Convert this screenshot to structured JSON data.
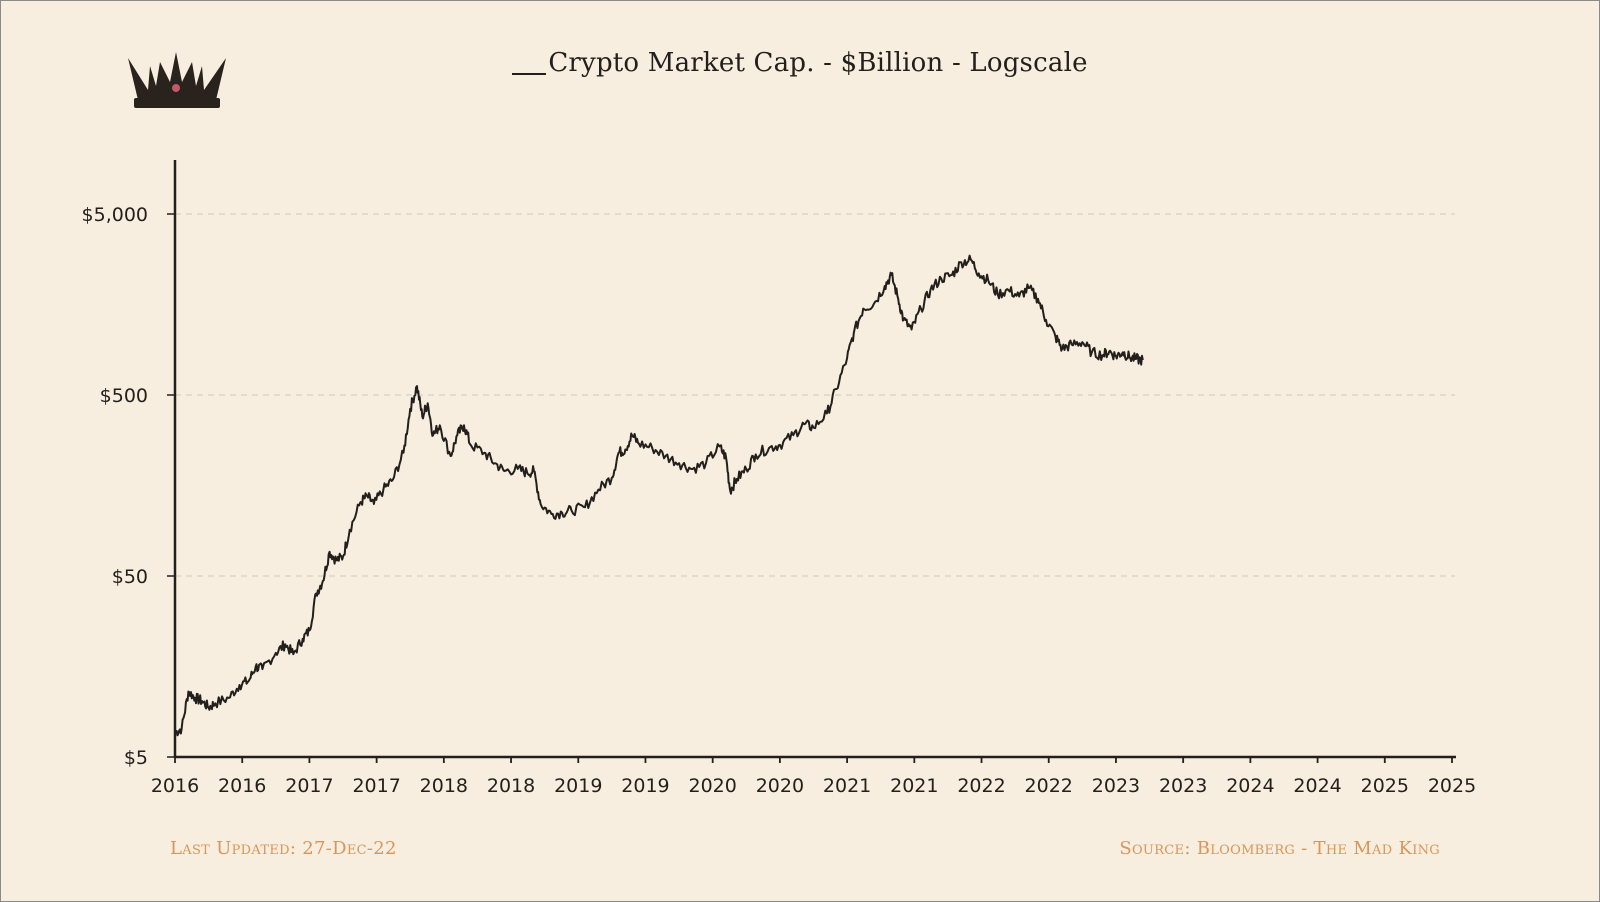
{
  "chart_data": {
    "type": "line",
    "title": "Crypto Market Cap. - $Billion - Logscale",
    "yscale": "log",
    "ylim": [
      5,
      10000
    ],
    "yticks": [
      {
        "value": 5,
        "label": "$5"
      },
      {
        "value": 50,
        "label": "$50"
      },
      {
        "value": 500,
        "label": "$500"
      },
      {
        "value": 5000,
        "label": "$5,000"
      }
    ],
    "xlim": [
      2016.0,
      2025.5
    ],
    "xticks": [
      {
        "value": 2016.0,
        "label": "2016"
      },
      {
        "value": 2016.5,
        "label": "2016"
      },
      {
        "value": 2017.0,
        "label": "2017"
      },
      {
        "value": 2017.5,
        "label": "2017"
      },
      {
        "value": 2018.0,
        "label": "2018"
      },
      {
        "value": 2018.5,
        "label": "2018"
      },
      {
        "value": 2019.0,
        "label": "2019"
      },
      {
        "value": 2019.5,
        "label": "2019"
      },
      {
        "value": 2020.0,
        "label": "2020"
      },
      {
        "value": 2020.5,
        "label": "2020"
      },
      {
        "value": 2021.0,
        "label": "2021"
      },
      {
        "value": 2021.5,
        "label": "2021"
      },
      {
        "value": 2022.0,
        "label": "2022"
      },
      {
        "value": 2022.5,
        "label": "2022"
      },
      {
        "value": 2023.0,
        "label": "2023"
      },
      {
        "value": 2023.5,
        "label": "2023"
      },
      {
        "value": 2024.0,
        "label": "2024"
      },
      {
        "value": 2024.5,
        "label": "2024"
      },
      {
        "value": 2025.0,
        "label": "2025"
      },
      {
        "value": 2025.5,
        "label": "2025"
      }
    ],
    "grid": "horizontal-dashed",
    "series": [
      {
        "name": "Crypto Market Cap.",
        "color": "#231f1c",
        "points": [
          [
            2016.0,
            6.8
          ],
          [
            2016.05,
            7.2
          ],
          [
            2016.1,
            11.5
          ],
          [
            2016.15,
            10.6
          ],
          [
            2016.2,
            10.2
          ],
          [
            2016.25,
            9.4
          ],
          [
            2016.3,
            9.9
          ],
          [
            2016.4,
            10.6
          ],
          [
            2016.48,
            12.5
          ],
          [
            2016.55,
            13.2
          ],
          [
            2016.6,
            15.8
          ],
          [
            2016.65,
            15.3
          ],
          [
            2016.75,
            18.8
          ],
          [
            2016.82,
            21.0
          ],
          [
            2016.88,
            18.5
          ],
          [
            2016.95,
            22.5
          ],
          [
            2017.0,
            25.0
          ],
          [
            2017.05,
            40.0
          ],
          [
            2017.1,
            47.0
          ],
          [
            2017.15,
            68.0
          ],
          [
            2017.2,
            61.0
          ],
          [
            2017.25,
            64.0
          ],
          [
            2017.3,
            90.0
          ],
          [
            2017.38,
            128.0
          ],
          [
            2017.43,
            138.0
          ],
          [
            2017.48,
            125.0
          ],
          [
            2017.55,
            150.0
          ],
          [
            2017.62,
            170.0
          ],
          [
            2017.7,
            240.0
          ],
          [
            2017.75,
            420.0
          ],
          [
            2017.8,
            560.0
          ],
          [
            2017.84,
            380.0
          ],
          [
            2017.88,
            450.0
          ],
          [
            2017.92,
            300.0
          ],
          [
            2017.97,
            340.0
          ],
          [
            2018.05,
            230.0
          ],
          [
            2018.1,
            300.0
          ],
          [
            2018.15,
            340.0
          ],
          [
            2018.2,
            265.0
          ],
          [
            2018.3,
            240.0
          ],
          [
            2018.38,
            210.0
          ],
          [
            2018.45,
            190.0
          ],
          [
            2018.55,
            195.0
          ],
          [
            2018.62,
            186.0
          ],
          [
            2018.67,
            190.0
          ],
          [
            2018.72,
            125.0
          ],
          [
            2018.8,
            110.0
          ],
          [
            2018.88,
            112.0
          ],
          [
            2018.95,
            115.0
          ],
          [
            2019.05,
            120.0
          ],
          [
            2019.15,
            150.0
          ],
          [
            2019.25,
            175.0
          ],
          [
            2019.3,
            240.0
          ],
          [
            2019.35,
            250.0
          ],
          [
            2019.4,
            300.0
          ],
          [
            2019.45,
            270.0
          ],
          [
            2019.55,
            255.0
          ],
          [
            2019.65,
            230.0
          ],
          [
            2019.75,
            210.0
          ],
          [
            2019.85,
            195.0
          ],
          [
            2019.95,
            210.0
          ],
          [
            2020.05,
            260.0
          ],
          [
            2020.1,
            225.0
          ],
          [
            2020.13,
            148.0
          ],
          [
            2020.18,
            172.0
          ],
          [
            2020.25,
            195.0
          ],
          [
            2020.32,
            235.0
          ],
          [
            2020.42,
            255.0
          ],
          [
            2020.5,
            265.0
          ],
          [
            2020.6,
            300.0
          ],
          [
            2020.68,
            345.0
          ],
          [
            2020.75,
            330.0
          ],
          [
            2020.85,
            395.0
          ],
          [
            2020.92,
            540.0
          ],
          [
            2021.0,
            800.0
          ],
          [
            2021.05,
            1100.0
          ],
          [
            2021.12,
            1500.0
          ],
          [
            2021.2,
            1600.0
          ],
          [
            2021.28,
            2000.0
          ],
          [
            2021.33,
            2300.0
          ],
          [
            2021.38,
            1700.0
          ],
          [
            2021.42,
            1300.0
          ],
          [
            2021.48,
            1150.0
          ],
          [
            2021.55,
            1500.0
          ],
          [
            2021.62,
            1900.0
          ],
          [
            2021.7,
            2200.0
          ],
          [
            2021.78,
            2300.0
          ],
          [
            2021.85,
            2700.0
          ],
          [
            2021.92,
            2800.0
          ],
          [
            2021.98,
            2350.0
          ],
          [
            2022.05,
            2150.0
          ],
          [
            2022.12,
            1800.0
          ],
          [
            2022.2,
            1900.0
          ],
          [
            2022.28,
            1750.0
          ],
          [
            2022.35,
            1950.0
          ],
          [
            2022.42,
            1700.0
          ],
          [
            2022.48,
            1300.0
          ],
          [
            2022.55,
            1050.0
          ],
          [
            2022.6,
            900.0
          ],
          [
            2022.67,
            950.0
          ],
          [
            2022.75,
            980.0
          ],
          [
            2022.82,
            860.0
          ],
          [
            2022.9,
            830.0
          ],
          [
            2022.95,
            870.0
          ],
          [
            2023.0,
            820.0
          ],
          [
            2023.05,
            860.0
          ],
          [
            2023.1,
            810.0
          ],
          [
            2023.15,
            790.0
          ],
          [
            2023.2,
            780.0
          ]
        ]
      }
    ]
  },
  "footer": {
    "updated": "Last Updated: 27-Dec-22",
    "source": "Source: Bloomberg - The Mad King"
  },
  "colors": {
    "background": "#f7eedf",
    "line": "#231f1c",
    "footer_text": "#d9955a",
    "grid": "#d6d0c4"
  },
  "icons": {
    "logo": "crown-icon"
  }
}
